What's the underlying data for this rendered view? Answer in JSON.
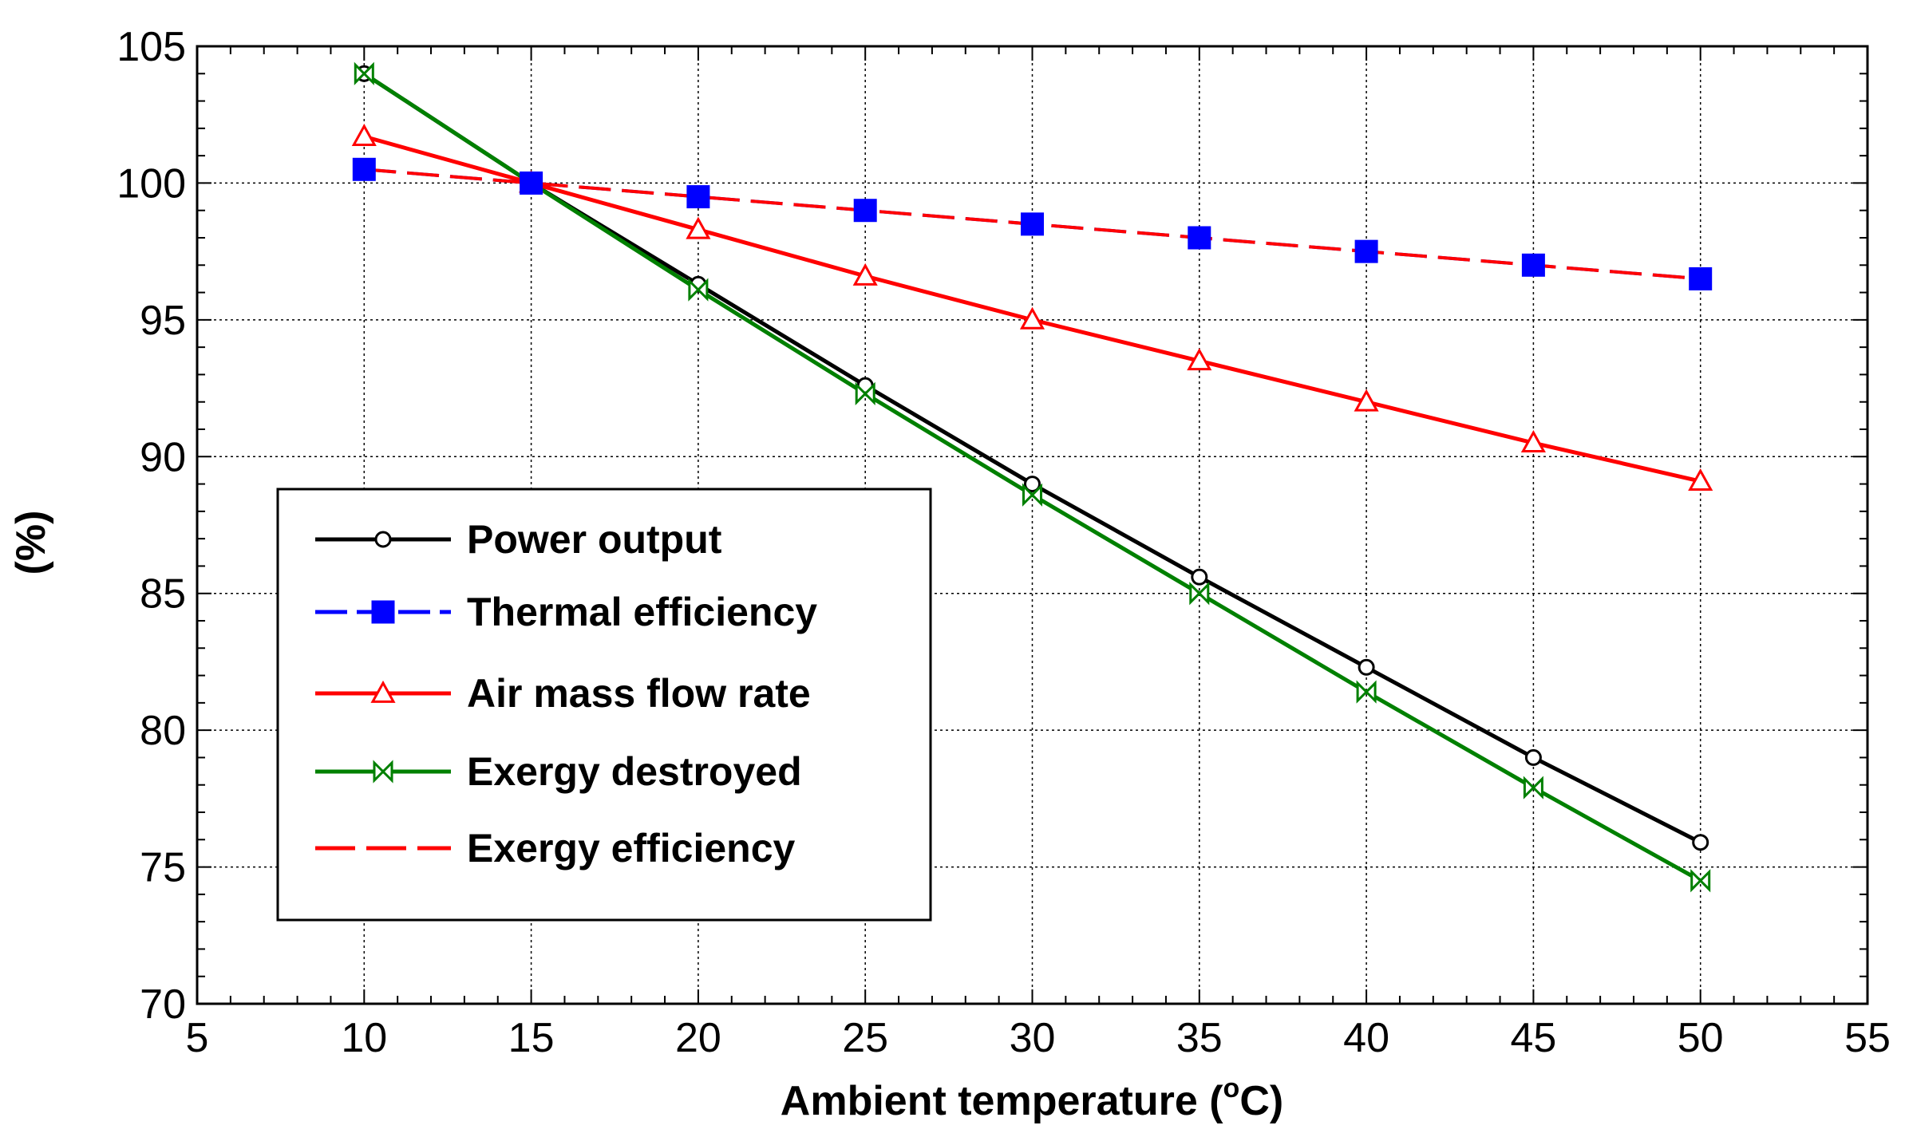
{
  "chart_data": {
    "type": "line",
    "title": "",
    "xlabel": "Ambient temperature (",
    "xlabel_unit": "o",
    "xlabel_suffix": "C)",
    "ylabel": "(%)",
    "xlim": [
      5,
      55
    ],
    "ylim": [
      70,
      105
    ],
    "xticks": [
      5,
      10,
      15,
      20,
      25,
      30,
      35,
      40,
      45,
      50,
      55
    ],
    "yticks": [
      70,
      75,
      80,
      85,
      90,
      95,
      100,
      105
    ],
    "grid": true,
    "legend_position": "lower-left",
    "x": [
      10,
      15,
      20,
      25,
      30,
      35,
      40,
      45,
      50
    ],
    "series": [
      {
        "name": "Power output",
        "color": "#000000",
        "marker": "circle",
        "values": [
          104.0,
          100.0,
          96.3,
          92.6,
          89.0,
          85.6,
          82.3,
          79.0,
          75.9
        ]
      },
      {
        "name": "Thermal efficiency",
        "color": "#0000ff",
        "marker": "square",
        "values": [
          100.5,
          100.0,
          99.5,
          99.0,
          98.5,
          98.0,
          97.5,
          97.0,
          96.5
        ]
      },
      {
        "name": "Air mass flow rate",
        "color": "#ff0000",
        "marker": "triangle",
        "values": [
          101.7,
          100.0,
          98.3,
          96.6,
          95.0,
          93.5,
          92.0,
          90.5,
          89.1
        ]
      },
      {
        "name": "Exergy destroyed",
        "color": "#008000",
        "marker": "bowtie",
        "values": [
          104.0,
          100.0,
          96.1,
          92.3,
          88.6,
          85.0,
          81.4,
          77.9,
          74.5
        ]
      },
      {
        "name": "Exergy efficiency",
        "color": "#ff0000",
        "marker": "none",
        "dashed": true,
        "values": [
          100.5,
          100.0,
          99.5,
          99.0,
          98.5,
          98.0,
          97.5,
          97.0,
          96.5
        ]
      }
    ]
  }
}
